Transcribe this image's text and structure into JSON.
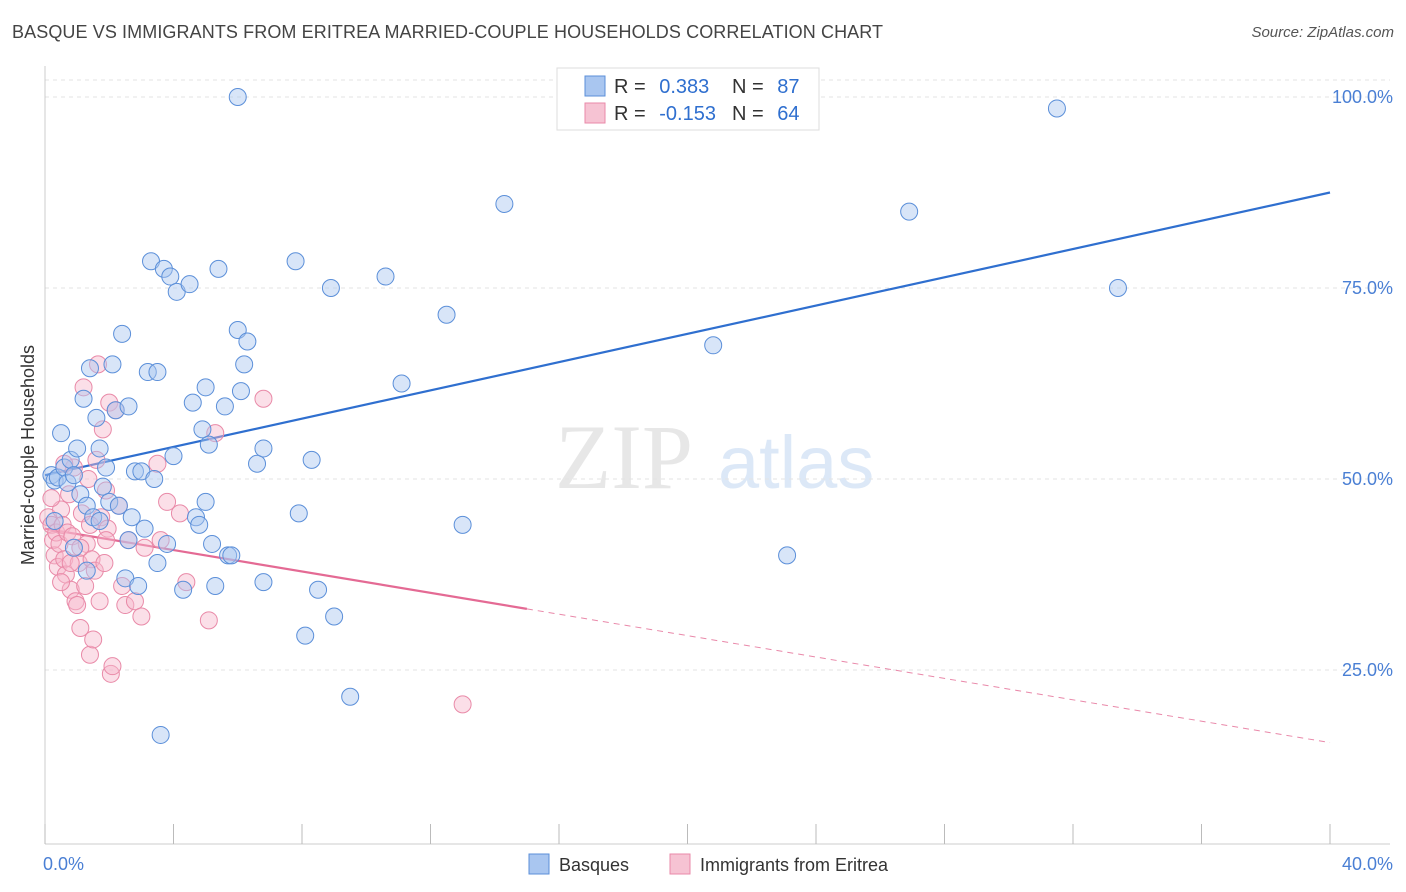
{
  "title": "BASQUE VS IMMIGRANTS FROM ERITREA MARRIED-COUPLE HOUSEHOLDS CORRELATION CHART",
  "source": "Source: ZipAtlas.com",
  "watermark": {
    "zip": "ZIP",
    "atlas": "atlas"
  },
  "colors": {
    "basques_fill": "#a9c6f0",
    "basques_stroke": "#5b8fd9",
    "basques_line": "#2f6fcf",
    "eritrea_fill": "#f6b9cb",
    "eritrea_stroke": "#e98aa8",
    "eritrea_line": "#e46a94",
    "axis_text": "#4a7fd4",
    "grid": "#e3e3e3"
  },
  "legend": {
    "rows": [
      {
        "r_label": "R = ",
        "r_value": "0.383",
        "n_label": "N = ",
        "n_value": "87"
      },
      {
        "r_label": "R = ",
        "r_value": "-0.153",
        "n_label": "N = ",
        "n_value": "64"
      }
    ]
  },
  "bottom_legend": [
    "Basques",
    "Immigrants from Eritrea"
  ],
  "chart_data": {
    "type": "scatter",
    "title": "BASQUE VS IMMIGRANTS FROM ERITREA MARRIED-COUPLE HOUSEHOLDS CORRELATION CHART",
    "xlabel": "",
    "ylabel": "Married-couple Households",
    "xlim": [
      0,
      40
    ],
    "ylim": [
      0,
      105
    ],
    "x_ticks": [
      0,
      4,
      8,
      12,
      16,
      20,
      24,
      28,
      32,
      36,
      40
    ],
    "x_tick_labels": [
      "0.0%",
      "40.0%"
    ],
    "y_ticks": [
      25,
      50,
      75,
      100
    ],
    "y_tick_labels": [
      "25.0%",
      "50.0%",
      "75.0%",
      "100.0%"
    ],
    "grid": true,
    "legend_position": "top-center",
    "series": [
      {
        "name": "Basques",
        "R": 0.383,
        "N": 87,
        "trend": {
          "x": [
            0,
            40
          ],
          "y": [
            50.5,
            87.5
          ]
        },
        "points": [
          [
            0.2,
            50.5
          ],
          [
            0.3,
            49.8
          ],
          [
            0.4,
            50.2
          ],
          [
            0.5,
            56
          ],
          [
            0.6,
            51.5
          ],
          [
            0.7,
            49.5
          ],
          [
            0.8,
            52.5
          ],
          [
            0.9,
            50.5
          ],
          [
            1.0,
            54
          ],
          [
            1.1,
            48
          ],
          [
            1.2,
            60.5
          ],
          [
            1.3,
            46.5
          ],
          [
            1.4,
            64.5
          ],
          [
            1.5,
            45
          ],
          [
            1.6,
            58
          ],
          [
            1.7,
            54
          ],
          [
            1.8,
            49
          ],
          [
            1.9,
            51.5
          ],
          [
            2.0,
            47
          ],
          [
            2.1,
            65
          ],
          [
            2.2,
            59
          ],
          [
            2.3,
            46.5
          ],
          [
            2.4,
            69
          ],
          [
            2.5,
            37
          ],
          [
            2.6,
            59.5
          ],
          [
            2.7,
            45
          ],
          [
            2.8,
            51
          ],
          [
            2.9,
            36
          ],
          [
            3.0,
            51
          ],
          [
            3.1,
            43.5
          ],
          [
            3.2,
            64
          ],
          [
            3.3,
            78.5
          ],
          [
            3.4,
            50
          ],
          [
            3.5,
            64
          ],
          [
            3.6,
            16.5
          ],
          [
            3.7,
            77.5
          ],
          [
            3.8,
            41.5
          ],
          [
            3.9,
            76.5
          ],
          [
            4.0,
            53
          ],
          [
            4.1,
            74.5
          ],
          [
            4.3,
            35.5
          ],
          [
            4.5,
            75.5
          ],
          [
            4.6,
            60
          ],
          [
            4.7,
            45
          ],
          [
            4.8,
            44
          ],
          [
            4.9,
            56.5
          ],
          [
            5.0,
            62
          ],
          [
            5.1,
            54.5
          ],
          [
            5.2,
            41.5
          ],
          [
            5.3,
            36
          ],
          [
            5.4,
            77.5
          ],
          [
            5.6,
            59.5
          ],
          [
            5.7,
            40
          ],
          [
            5.8,
            40
          ],
          [
            6.0,
            69.5
          ],
          [
            6.1,
            61.5
          ],
          [
            6.2,
            65
          ],
          [
            6.3,
            68
          ],
          [
            6.6,
            52
          ],
          [
            6.8,
            54
          ],
          [
            7.8,
            78.5
          ],
          [
            7.9,
            45.5
          ],
          [
            8.3,
            52.5
          ],
          [
            8.1,
            29.5
          ],
          [
            8.5,
            35.5
          ],
          [
            8.9,
            75
          ],
          [
            9.5,
            21.5
          ],
          [
            10.6,
            76.5
          ],
          [
            11.1,
            62.5
          ],
          [
            12.5,
            71.5
          ],
          [
            13.0,
            44
          ],
          [
            14.3,
            86
          ],
          [
            20.8,
            67.5
          ],
          [
            23.1,
            40
          ],
          [
            26.9,
            85
          ],
          [
            31.5,
            98.5
          ],
          [
            33.4,
            75
          ],
          [
            6.0,
            100
          ],
          [
            0.3,
            44.5
          ],
          [
            0.9,
            41
          ],
          [
            1.7,
            44.5
          ],
          [
            2.6,
            42
          ],
          [
            3.5,
            39
          ],
          [
            5.0,
            47
          ],
          [
            6.8,
            36.5
          ],
          [
            9.0,
            32
          ],
          [
            1.3,
            38
          ]
        ]
      },
      {
        "name": "Immigrants from Eritrea",
        "R": -0.153,
        "N": 64,
        "trend": {
          "x": [
            0,
            15
          ],
          "y": [
            43.5,
            33.0
          ]
        },
        "trend_dashed": {
          "x": [
            15,
            40
          ],
          "y": [
            33.0,
            15.5
          ]
        },
        "points": [
          [
            0.1,
            45
          ],
          [
            0.2,
            44
          ],
          [
            0.25,
            42
          ],
          [
            0.3,
            40
          ],
          [
            0.35,
            43
          ],
          [
            0.4,
            38.5
          ],
          [
            0.45,
            41.5
          ],
          [
            0.5,
            46
          ],
          [
            0.55,
            44
          ],
          [
            0.6,
            39.5
          ],
          [
            0.65,
            37.5
          ],
          [
            0.7,
            43
          ],
          [
            0.75,
            48
          ],
          [
            0.8,
            35.5
          ],
          [
            0.85,
            42.5
          ],
          [
            0.9,
            51.5
          ],
          [
            0.95,
            34
          ],
          [
            1.0,
            33.5
          ],
          [
            1.05,
            39
          ],
          [
            1.1,
            30.5
          ],
          [
            1.15,
            45.5
          ],
          [
            1.2,
            62
          ],
          [
            1.25,
            36
          ],
          [
            1.3,
            41.5
          ],
          [
            1.35,
            50
          ],
          [
            1.4,
            27
          ],
          [
            1.45,
            39.5
          ],
          [
            1.5,
            29
          ],
          [
            1.55,
            38
          ],
          [
            1.6,
            52.5
          ],
          [
            1.65,
            65
          ],
          [
            1.7,
            34
          ],
          [
            1.75,
            45
          ],
          [
            1.8,
            56.5
          ],
          [
            1.85,
            39
          ],
          [
            1.9,
            48.5
          ],
          [
            1.95,
            43.5
          ],
          [
            2.0,
            60
          ],
          [
            2.05,
            24.5
          ],
          [
            2.1,
            25.5
          ],
          [
            2.2,
            59
          ],
          [
            2.3,
            46.5
          ],
          [
            2.4,
            36
          ],
          [
            2.5,
            33.5
          ],
          [
            2.6,
            42
          ],
          [
            2.8,
            34
          ],
          [
            3.0,
            32
          ],
          [
            3.1,
            41
          ],
          [
            3.5,
            52
          ],
          [
            3.6,
            42
          ],
          [
            3.8,
            47
          ],
          [
            4.2,
            45.5
          ],
          [
            4.4,
            36.5
          ],
          [
            5.1,
            31.5
          ],
          [
            5.3,
            56
          ],
          [
            6.8,
            60.5
          ],
          [
            13.0,
            20.5
          ],
          [
            0.6,
            52
          ],
          [
            0.2,
            47.5
          ],
          [
            1.1,
            41
          ],
          [
            0.8,
            39
          ],
          [
            1.4,
            44
          ],
          [
            0.5,
            36.5
          ],
          [
            1.9,
            42
          ]
        ]
      }
    ]
  }
}
